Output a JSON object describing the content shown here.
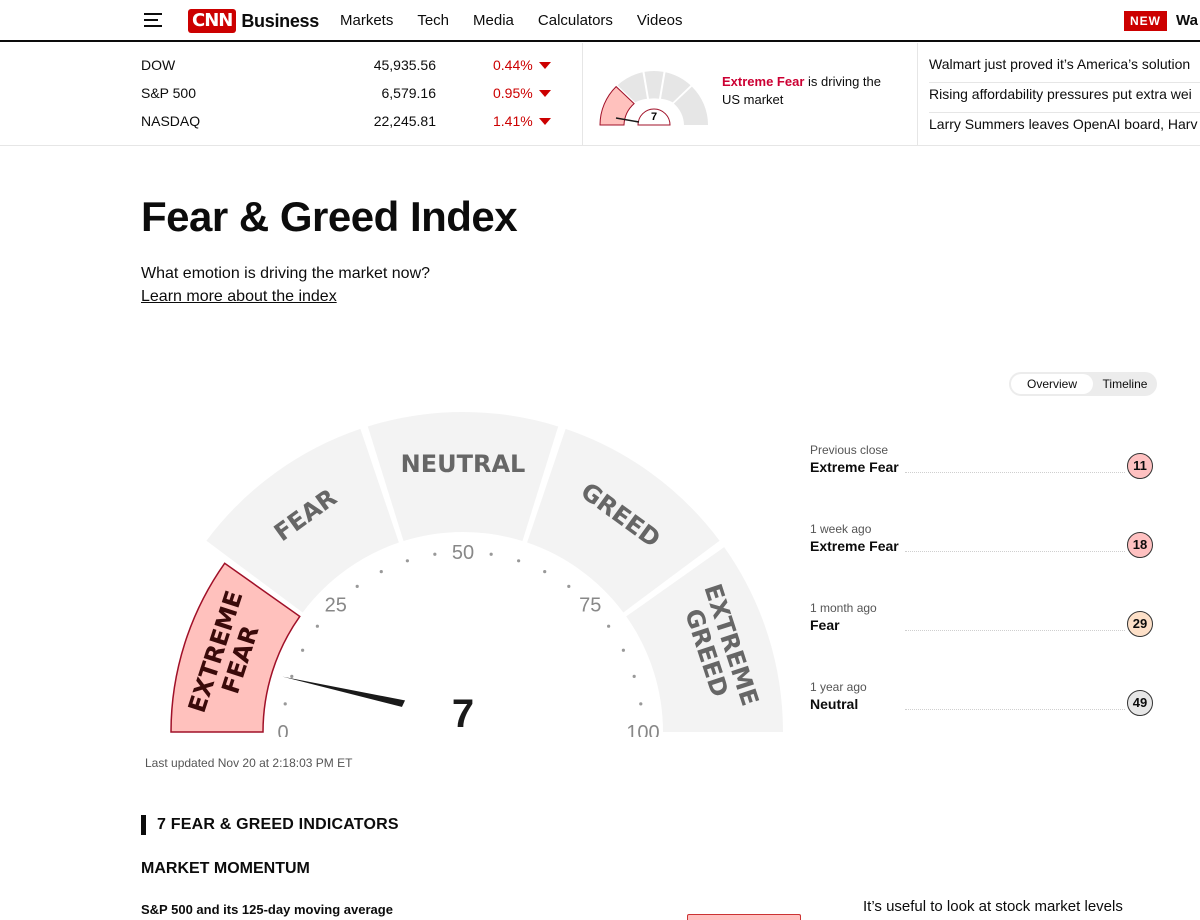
{
  "nav": {
    "logo_brand": "CNN",
    "logo_section": "Business",
    "links": [
      "Markets",
      "Tech",
      "Media",
      "Calculators",
      "Videos"
    ],
    "new_badge": "NEW",
    "new_text": "Wa"
  },
  "markets": [
    {
      "name": "DOW",
      "value": "45,935.56",
      "change": "0.44%",
      "direction": "down"
    },
    {
      "name": "S&P 500",
      "value": "6,579.16",
      "change": "0.95%",
      "direction": "down"
    },
    {
      "name": "NASDAQ",
      "value": "22,245.81",
      "change": "1.41%",
      "direction": "down"
    }
  ],
  "mini_gauge": {
    "value": "7",
    "status": "Extreme Fear",
    "text": "is driving the US market"
  },
  "headlines": [
    "Walmart just proved it’s America’s solution",
    "Rising affordability pressures put extra wei",
    "Larry Summers leaves OpenAI board, Harv"
  ],
  "page": {
    "title": "Fear & Greed Index",
    "subtitle": "What emotion is driving the market now?",
    "learn_link": "Learn more about the index"
  },
  "toggle": {
    "overview": "Overview",
    "timeline": "Timeline",
    "selected": "Overview"
  },
  "gauge": {
    "value": 7,
    "value_text": "7",
    "segments": [
      "EXTREME FEAR",
      "FEAR",
      "NEUTRAL",
      "GREED",
      "EXTREME GREED"
    ],
    "active_segment": "EXTREME FEAR",
    "ticks": [
      "0",
      "25",
      "50",
      "75",
      "100"
    ],
    "colors": {
      "active": "#ffc1bd",
      "active_border": "#a01028",
      "inactive": "#f3f3f3",
      "label": "#666666",
      "needle": "#1a1a1a"
    }
  },
  "last_updated": "Last updated Nov 20 at 2:18:03 PM ET",
  "history": [
    {
      "label": "Previous close",
      "state": "Extreme Fear",
      "value": "11",
      "color": "#ffc1c1"
    },
    {
      "label": "1 week ago",
      "state": "Extreme Fear",
      "value": "18",
      "color": "#ffc1c1"
    },
    {
      "label": "1 month ago",
      "state": "Fear",
      "value": "29",
      "color": "#fde0c8"
    },
    {
      "label": "1 year ago",
      "state": "Neutral",
      "value": "49",
      "color": "#e6e6e6"
    }
  ],
  "indicators": {
    "heading": "7 FEAR & GREED INDICATORS",
    "section": "MARKET MOMENTUM",
    "item": "S&P 500 and its 125-day moving average",
    "description": "It’s useful to look at stock market levels"
  }
}
